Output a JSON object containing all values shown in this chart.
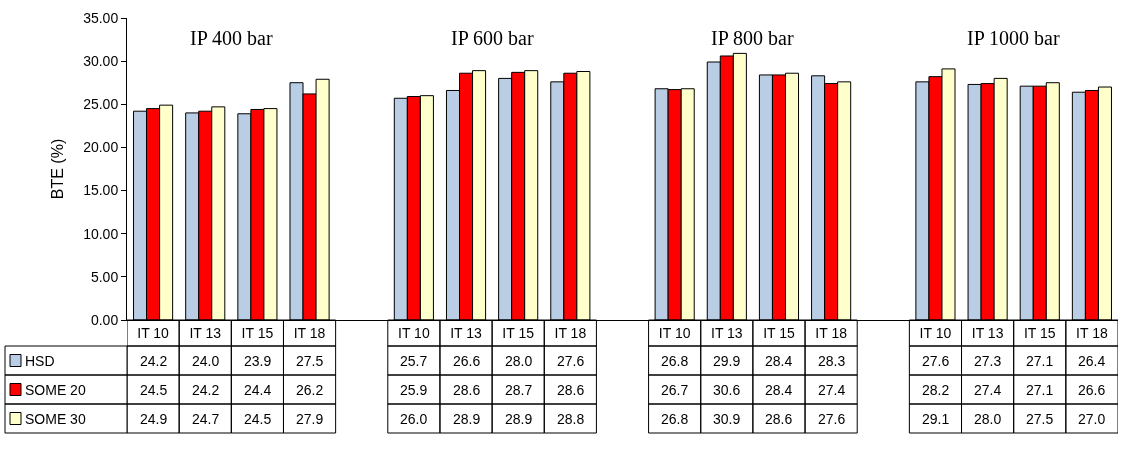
{
  "chart_data": {
    "type": "bar",
    "ylabel": "BTE (%)",
    "categories": [
      "IT 10",
      "IT 13",
      "IT 15",
      "IT 18",
      null,
      "IT 10",
      "IT 13",
      "IT 15",
      "IT 18",
      null,
      "IT 10",
      "IT 13",
      "IT 15",
      "IT 18",
      null,
      "IT 10",
      "IT 13",
      "IT 15",
      "IT 18"
    ],
    "series": [
      {
        "name": "HSD",
        "color": "#b9cde5",
        "values": [
          24.2,
          24.0,
          23.9,
          27.5,
          null,
          25.7,
          26.6,
          28.0,
          27.6,
          null,
          26.8,
          29.9,
          28.4,
          28.3,
          null,
          27.6,
          27.3,
          27.1,
          26.4
        ],
        "value_labels": [
          "24.2",
          "24.0",
          "23.9",
          "27.5",
          null,
          "25.7",
          "26.6",
          "28.0",
          "27.6",
          null,
          "26.8",
          "29.9",
          "28.4",
          "28.3",
          null,
          "27.6",
          "27.3",
          "27.1",
          "26.4"
        ]
      },
      {
        "name": "SOME 20",
        "color": "#ff0000",
        "values": [
          24.5,
          24.2,
          24.4,
          26.2,
          null,
          25.9,
          28.6,
          28.7,
          28.6,
          null,
          26.7,
          30.6,
          28.4,
          27.4,
          null,
          28.2,
          27.4,
          27.1,
          26.6
        ],
        "value_labels": [
          "24.5",
          "24.2",
          "24.4",
          "26.2",
          null,
          "25.9",
          "28.6",
          "28.7",
          "28.6",
          null,
          "26.7",
          "30.6",
          "28.4",
          "27.4",
          null,
          "28.2",
          "27.4",
          "27.1",
          "26.6"
        ]
      },
      {
        "name": "SOME 30",
        "color": "#ffffcc",
        "values": [
          24.9,
          24.7,
          24.5,
          27.9,
          null,
          26.0,
          28.9,
          28.9,
          28.8,
          null,
          26.8,
          30.9,
          28.6,
          27.6,
          null,
          29.1,
          28.0,
          27.5,
          27.0
        ],
        "value_labels": [
          "24.9",
          "24.7",
          "24.5",
          "27.9",
          null,
          "26.0",
          "28.9",
          "28.9",
          "28.8",
          null,
          "26.8",
          "30.9",
          "28.6",
          "27.6",
          null,
          "29.1",
          "28.0",
          "27.5",
          "27.0"
        ]
      }
    ],
    "annotations": [
      "IP 400 bar",
      "IP 600 bar",
      "IP 800 bar",
      "IP 1000 bar"
    ],
    "ylim": [
      0,
      35
    ],
    "yticks": [
      {
        "value": 0,
        "label": "0.00"
      },
      {
        "value": 5,
        "label": "5.00"
      },
      {
        "value": 10,
        "label": "10.00"
      },
      {
        "value": 15,
        "label": "15.00"
      },
      {
        "value": 20,
        "label": "20.00"
      },
      {
        "value": 25,
        "label": "25.00"
      },
      {
        "value": 30,
        "label": "30.00"
      },
      {
        "value": 35,
        "label": "35.00"
      }
    ],
    "legend": "bottom left"
  }
}
